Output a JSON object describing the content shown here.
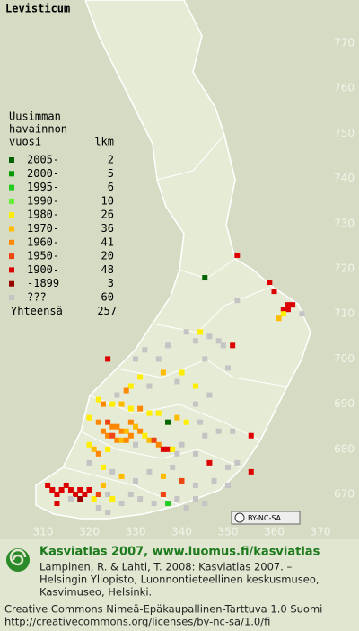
{
  "title": "Levisticum",
  "legend": {
    "header": [
      "Uusimman",
      "havainnon",
      "vuosi"
    ],
    "count_header": "lkm",
    "rows": [
      {
        "label": "2005-",
        "count": 2,
        "color": "#006400"
      },
      {
        "label": "2000-",
        "count": 5,
        "color": "#009a00"
      },
      {
        "label": "1995-",
        "count": 6,
        "color": "#22cc22"
      },
      {
        "label": "1990-",
        "count": 10,
        "color": "#66ee33"
      },
      {
        "label": "1980-",
        "count": 26,
        "color": "#ffee00"
      },
      {
        "label": "1970-",
        "count": 36,
        "color": "#ffbb00"
      },
      {
        "label": "1960-",
        "count": 41,
        "color": "#ff8800"
      },
      {
        "label": "1950-",
        "count": 20,
        "color": "#ee4411"
      },
      {
        "label": "1900-",
        "count": 48,
        "color": "#dd0000"
      },
      {
        "label": "-1899",
        "count": 3,
        "color": "#990000"
      },
      {
        "label": "???",
        "count": 60,
        "color": "#c4c4c4"
      }
    ],
    "total_label": "Yhteensä",
    "total": 257
  },
  "map": {
    "yticks": [
      770,
      760,
      750,
      740,
      730,
      720,
      710,
      700,
      690,
      680,
      670
    ],
    "xticks": [
      310,
      320,
      330,
      340,
      350,
      360,
      370
    ],
    "records": [
      [
        352,
        723,
        8
      ],
      [
        345,
        718,
        0
      ],
      [
        352,
        713,
        10
      ],
      [
        359,
        717,
        8
      ],
      [
        360,
        715,
        8
      ],
      [
        362,
        711,
        8
      ],
      [
        363,
        712,
        8
      ],
      [
        363,
        711,
        8
      ],
      [
        364,
        712,
        8
      ],
      [
        362,
        710,
        4
      ],
      [
        366,
        710,
        10
      ],
      [
        361,
        709,
        5
      ],
      [
        341,
        706,
        10
      ],
      [
        344,
        706,
        4
      ],
      [
        346,
        705,
        10
      ],
      [
        348,
        704,
        10
      ],
      [
        349,
        703,
        10
      ],
      [
        351,
        703,
        8
      ],
      [
        343,
        704,
        10
      ],
      [
        337,
        703,
        10
      ],
      [
        332,
        702,
        10
      ],
      [
        330,
        700,
        10
      ],
      [
        324,
        700,
        8
      ],
      [
        335,
        700,
        10
      ],
      [
        345,
        700,
        10
      ],
      [
        350,
        698,
        10
      ],
      [
        340,
        697,
        4
      ],
      [
        336,
        697,
        5
      ],
      [
        331,
        696,
        4
      ],
      [
        329,
        694,
        4
      ],
      [
        328,
        693,
        6
      ],
      [
        326,
        692,
        10
      ],
      [
        333,
        694,
        10
      ],
      [
        339,
        695,
        10
      ],
      [
        343,
        694,
        4
      ],
      [
        346,
        692,
        10
      ],
      [
        343,
        690,
        10
      ],
      [
        322,
        691,
        4
      ],
      [
        323,
        690,
        6
      ],
      [
        325,
        690,
        4
      ],
      [
        327,
        690,
        5
      ],
      [
        329,
        689,
        4
      ],
      [
        331,
        689,
        6
      ],
      [
        333,
        688,
        4
      ],
      [
        335,
        688,
        4
      ],
      [
        337,
        686,
        0
      ],
      [
        339,
        687,
        5
      ],
      [
        341,
        686,
        4
      ],
      [
        344,
        686,
        10
      ],
      [
        348,
        684,
        10
      ],
      [
        351,
        684,
        10
      ],
      [
        355,
        683,
        8
      ],
      [
        345,
        683,
        10
      ],
      [
        320,
        687,
        4
      ],
      [
        322,
        686,
        6
      ],
      [
        324,
        686,
        7
      ],
      [
        325,
        685,
        6
      ],
      [
        326,
        685,
        6
      ],
      [
        327,
        684,
        6
      ],
      [
        328,
        684,
        5
      ],
      [
        329,
        686,
        6
      ],
      [
        330,
        685,
        5
      ],
      [
        331,
        684,
        6
      ],
      [
        323,
        684,
        6
      ],
      [
        324,
        683,
        6
      ],
      [
        325,
        683,
        7
      ],
      [
        326,
        682,
        6
      ],
      [
        327,
        682,
        5
      ],
      [
        328,
        682,
        6
      ],
      [
        329,
        683,
        6
      ],
      [
        332,
        683,
        4
      ],
      [
        333,
        682,
        5
      ],
      [
        320,
        681,
        4
      ],
      [
        321,
        680,
        5
      ],
      [
        322,
        679,
        6
      ],
      [
        324,
        680,
        4
      ],
      [
        330,
        681,
        10
      ],
      [
        334,
        682,
        7
      ],
      [
        335,
        681,
        6
      ],
      [
        336,
        680,
        8
      ],
      [
        337,
        680,
        8
      ],
      [
        338,
        680,
        4
      ],
      [
        339,
        679,
        10
      ],
      [
        340,
        681,
        10
      ],
      [
        343,
        679,
        10
      ],
      [
        346,
        677,
        8
      ],
      [
        350,
        676,
        10
      ],
      [
        352,
        677,
        10
      ],
      [
        355,
        675,
        8
      ],
      [
        320,
        677,
        10
      ],
      [
        323,
        676,
        4
      ],
      [
        325,
        675,
        10
      ],
      [
        327,
        674,
        5
      ],
      [
        330,
        673,
        10
      ],
      [
        333,
        675,
        10
      ],
      [
        336,
        674,
        5
      ],
      [
        338,
        676,
        10
      ],
      [
        340,
        673,
        7
      ],
      [
        343,
        672,
        10
      ],
      [
        347,
        673,
        10
      ],
      [
        350,
        672,
        10
      ],
      [
        311,
        672,
        8
      ],
      [
        312,
        671,
        8
      ],
      [
        313,
        670,
        8
      ],
      [
        314,
        671,
        8
      ],
      [
        315,
        672,
        8
      ],
      [
        316,
        671,
        8
      ],
      [
        317,
        670,
        8
      ],
      [
        318,
        671,
        8
      ],
      [
        318,
        669,
        9
      ],
      [
        319,
        670,
        8
      ],
      [
        320,
        671,
        8
      ],
      [
        316,
        669,
        10
      ],
      [
        313,
        668,
        8
      ],
      [
        321,
        669,
        4
      ],
      [
        322,
        670,
        7
      ],
      [
        323,
        672,
        5
      ],
      [
        324,
        670,
        10
      ],
      [
        325,
        669,
        4
      ],
      [
        322,
        667,
        10
      ],
      [
        324,
        666,
        10
      ],
      [
        327,
        668,
        10
      ],
      [
        329,
        670,
        10
      ],
      [
        331,
        669,
        10
      ],
      [
        334,
        668,
        10
      ],
      [
        336,
        670,
        7
      ],
      [
        337,
        668,
        2
      ],
      [
        339,
        669,
        10
      ],
      [
        341,
        667,
        10
      ],
      [
        343,
        669,
        10
      ],
      [
        345,
        668,
        10
      ]
    ]
  },
  "footer": {
    "cc_badge": "BY-NC-SA",
    "site": "Kasviatlas 2007, www.luomus.fi/kasviatlas",
    "citation": [
      "Lampinen, R. & Lahti, T. 2008: Kasviatlas 2007. –",
      "Helsingin Yliopisto, Luonnontieteellinen keskusmuseo,",
      "Kasvimuseo, Helsinki."
    ],
    "license": [
      "Creative Commons Nimeä-Epäkaupallinen-Tarttuva 1.0 Suomi",
      "http://creativecommons.org/licenses/by-nc-sa/1.0/fi"
    ]
  }
}
